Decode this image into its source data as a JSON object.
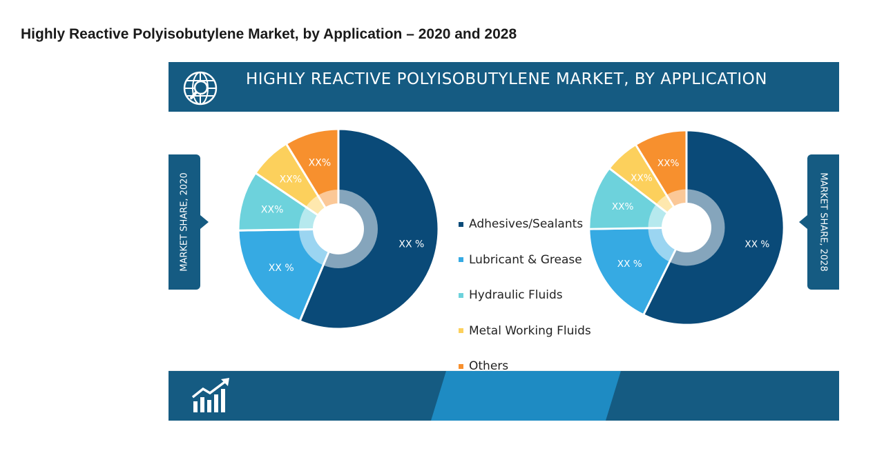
{
  "page": {
    "title": "Highly Reactive Polyisobutylene Market, by Application – 2020 and 2028"
  },
  "infographic": {
    "header_title": "HIGHLY REACTIVE POLYISOBUTYLENE MARKET, BY  APPLICATION",
    "left_tab": "MARKET SHARE, 2020",
    "right_tab": "MARKET SHARE, 2028",
    "header_icon": "globe-search-icon",
    "footer_icon": "growth-chart-icon",
    "colors": {
      "bar": "#155b82",
      "stripe": "#1e8bc3",
      "background": "#f0f0f0"
    }
  },
  "chart_data": [
    {
      "type": "pie",
      "legend": "center",
      "categories": [
        "Adhesives/Sealants",
        "Lubricant & Grease",
        "Hydraulic Fluids",
        "Metal Working Fluids",
        "Others"
      ],
      "values": [
        58,
        19,
        10,
        7,
        9
      ],
      "data_labels": [
        "XX %",
        "XX %",
        "XX%",
        "XX%",
        "XX%"
      ],
      "colors": [
        "#0a4a78",
        "#36aae3",
        "#6dd2dc",
        "#fcd05c",
        "#f7902e"
      ]
    },
    {
      "type": "pie",
      "legend": "center",
      "categories": [
        "Adhesives/Sealants",
        "Lubricant & Grease",
        "Hydraulic Fluids",
        "Metal Working Fluids",
        "Others"
      ],
      "values": [
        59,
        18,
        11,
        6,
        9
      ],
      "data_labels": [
        "XX %",
        "XX %",
        "XX%",
        "XX%",
        "XX%"
      ],
      "colors": [
        "#0a4a78",
        "#36aae3",
        "#6dd2dc",
        "#fcd05c",
        "#f7902e"
      ]
    }
  ]
}
